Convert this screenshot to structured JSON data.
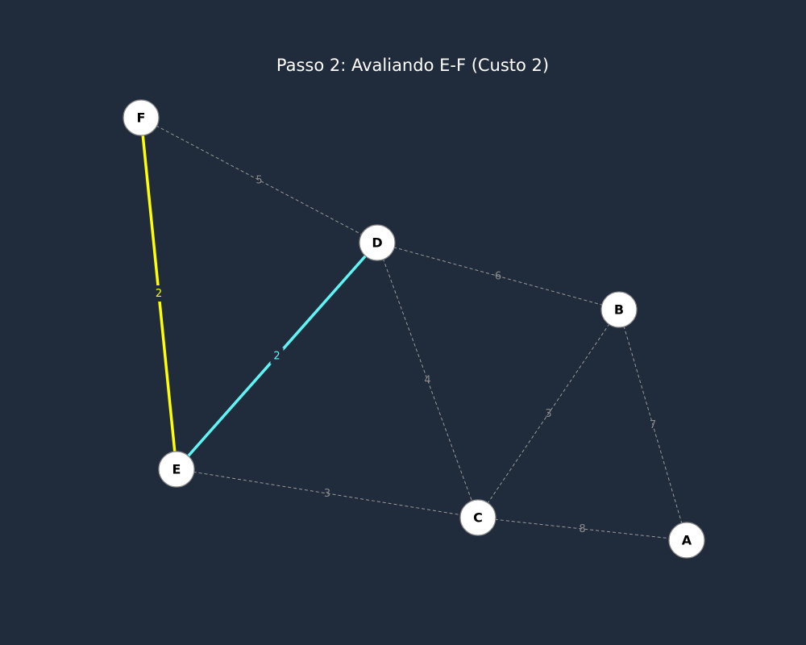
{
  "title": "Passo 2: Avaliando E-F (Custo 2)",
  "colors": {
    "background": "#202b3b",
    "default_edge": "#9a9a9a",
    "mst_edge": "#5ff5f5",
    "evaluating_edge": "#ffff00",
    "node_fill": "#ffffff",
    "node_stroke": "#888888"
  },
  "nodes": [
    {
      "id": "F",
      "label": "F"
    },
    {
      "id": "D",
      "label": "D"
    },
    {
      "id": "B",
      "label": "B"
    },
    {
      "id": "E",
      "label": "E"
    },
    {
      "id": "C",
      "label": "C"
    },
    {
      "id": "A",
      "label": "A"
    }
  ],
  "edges": [
    {
      "from": "F",
      "to": "D",
      "weight": "5",
      "state": "default"
    },
    {
      "from": "D",
      "to": "B",
      "weight": "6",
      "state": "default"
    },
    {
      "from": "D",
      "to": "C",
      "weight": "4",
      "state": "default"
    },
    {
      "from": "B",
      "to": "C",
      "weight": "3",
      "state": "default"
    },
    {
      "from": "B",
      "to": "A",
      "weight": "7",
      "state": "default"
    },
    {
      "from": "E",
      "to": "C",
      "weight": "3",
      "state": "default"
    },
    {
      "from": "C",
      "to": "A",
      "weight": "8",
      "state": "default"
    },
    {
      "from": "E",
      "to": "D",
      "weight": "2",
      "state": "mst"
    },
    {
      "from": "F",
      "to": "E",
      "weight": "2",
      "state": "evaluating"
    }
  ]
}
